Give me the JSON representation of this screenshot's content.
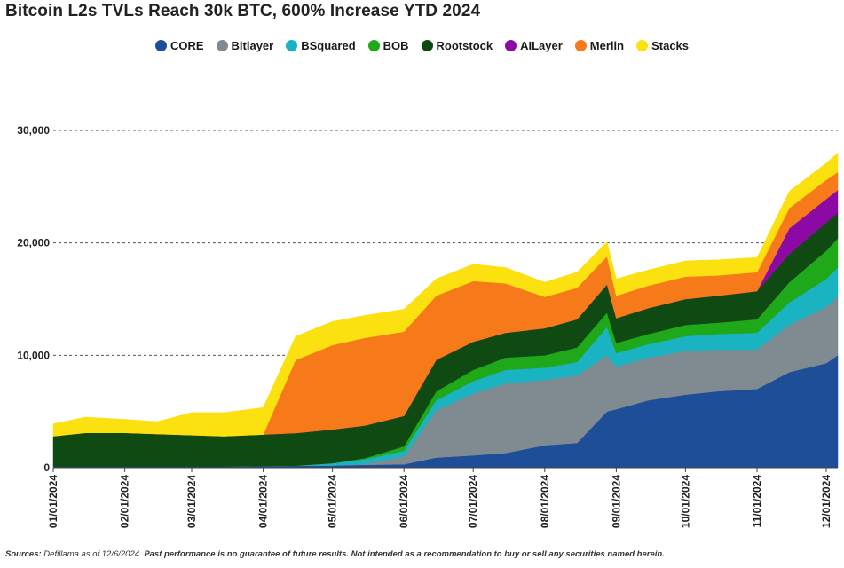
{
  "chart_data": {
    "type": "area",
    "stacked": true,
    "title": "Bitcoin L2s TVLs Reach 30k BTC, 600% Increase YTD 2024",
    "xlabel": "",
    "ylabel": "",
    "ylim": [
      0,
      30000
    ],
    "yticks": [
      0,
      10000,
      20000,
      30000
    ],
    "ytick_labels": [
      "0",
      "10,000",
      "20,000",
      "30,000"
    ],
    "grid": "horizontal dashed",
    "legend_position": "top-center",
    "x_range": [
      "01/01/2024",
      "12/06/2024"
    ],
    "xtick_labels": [
      "01/01/2024",
      "02/01/2024",
      "03/01/2024",
      "04/01/2024",
      "05/01/2024",
      "06/01/2024",
      "07/01/2024",
      "08/01/2024",
      "09/01/2024",
      "10/01/2024",
      "11/01/2024",
      "12/01/2024"
    ],
    "x_dates": [
      "01/01",
      "01/15",
      "02/01",
      "02/15",
      "03/01",
      "03/15",
      "04/01",
      "04/15",
      "05/01",
      "05/15",
      "06/01",
      "06/15",
      "07/01",
      "07/15",
      "08/01",
      "08/15",
      "08/28",
      "09/01",
      "09/15",
      "10/01",
      "10/15",
      "11/01",
      "11/15",
      "12/01",
      "12/06"
    ],
    "x": [
      0,
      14,
      31,
      45,
      60,
      74,
      91,
      105,
      121,
      135,
      152,
      166,
      182,
      196,
      213,
      227,
      240,
      244,
      258,
      274,
      288,
      305,
      319,
      335,
      340
    ],
    "series": [
      {
        "name": "CORE",
        "color": "#1f4e99",
        "values": [
          100,
          100,
          100,
          100,
          100,
          100,
          150,
          180,
          200,
          250,
          300,
          900,
          1100,
          1300,
          2000,
          2200,
          5000,
          5200,
          6000,
          6500,
          6800,
          7000,
          8500,
          9300,
          10000
        ]
      },
      {
        "name": "Bitlayer",
        "color": "#7f8a91",
        "values": [
          0,
          0,
          0,
          0,
          0,
          0,
          0,
          0,
          0,
          100,
          700,
          4200,
          5500,
          6200,
          5800,
          6000,
          5000,
          3800,
          3800,
          3900,
          3700,
          3500,
          4200,
          5000,
          5200
        ]
      },
      {
        "name": "BSquared",
        "color": "#1ab3c1",
        "values": [
          0,
          0,
          0,
          0,
          0,
          0,
          0,
          0,
          200,
          400,
          500,
          900,
          1100,
          1200,
          1100,
          1200,
          2500,
          1200,
          1200,
          1300,
          1400,
          1500,
          2000,
          2500,
          2600
        ]
      },
      {
        "name": "BOB",
        "color": "#1fa81a",
        "values": [
          0,
          0,
          0,
          0,
          0,
          0,
          0,
          0,
          0,
          100,
          400,
          800,
          1000,
          1100,
          1100,
          1300,
          1300,
          900,
          900,
          1000,
          1000,
          1200,
          1800,
          2500,
          2600
        ]
      },
      {
        "name": "Rootstock",
        "color": "#0f4a12",
        "values": [
          2700,
          3000,
          3000,
          2900,
          2800,
          2700,
          2800,
          2900,
          3000,
          2900,
          2700,
          2800,
          2500,
          2200,
          2400,
          2500,
          2500,
          2200,
          2300,
          2300,
          2400,
          2500,
          2500,
          2500,
          2300
        ]
      },
      {
        "name": "AILayer",
        "color": "#8c0aa3",
        "values": [
          0,
          0,
          0,
          0,
          0,
          0,
          0,
          0,
          0,
          0,
          0,
          0,
          0,
          0,
          0,
          0,
          0,
          0,
          0,
          0,
          0,
          0,
          2300,
          2100,
          2000
        ]
      },
      {
        "name": "Merlin",
        "color": "#f77a1a",
        "values": [
          0,
          0,
          0,
          0,
          0,
          0,
          0,
          6500,
          7500,
          7800,
          7500,
          5700,
          5400,
          4400,
          2800,
          2800,
          2500,
          2000,
          2000,
          2000,
          1800,
          1700,
          1800,
          1700,
          1600
        ]
      },
      {
        "name": "Stacks",
        "color": "#fbe10f",
        "values": [
          1100,
          1400,
          1200,
          1100,
          2000,
          2100,
          2400,
          2100,
          2100,
          2000,
          2000,
          1500,
          1500,
          1400,
          1300,
          1400,
          1300,
          1500,
          1400,
          1400,
          1400,
          1300,
          1500,
          1500,
          1700
        ]
      }
    ]
  },
  "footnote": {
    "lead": "Sources:",
    "text": " Defillama as of 12/6/2024. ",
    "disclaimer": "Past performance is no guarantee of future results. Not intended as a recommendation to buy or sell any securities named herein."
  }
}
